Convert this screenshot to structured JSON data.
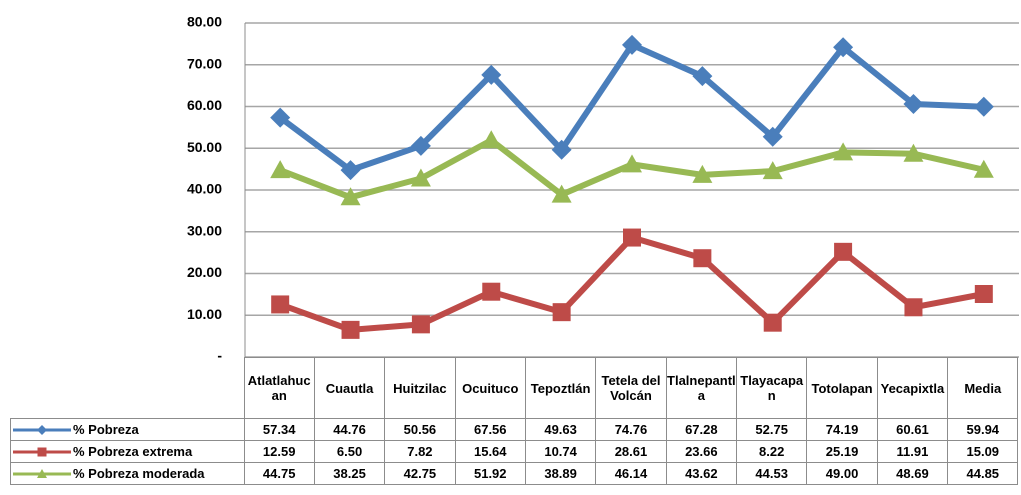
{
  "chart_data": {
    "type": "line",
    "categories": [
      "Atlatlahucan",
      "Cuautla",
      "Huitzilac",
      "Ocuituco",
      "Tepoztlán",
      "Tetela del Volcán",
      "Tlalnepantla",
      "Tlayacapan",
      "Totolapan",
      "Yecapixtla",
      "Media"
    ],
    "series": [
      {
        "name": "% Pobreza",
        "color": "#4a7ebb",
        "marker": "diamond",
        "values": [
          57.34,
          44.76,
          50.56,
          67.56,
          49.63,
          74.76,
          67.28,
          52.75,
          74.19,
          60.61,
          59.94
        ],
        "value_labels": [
          "57.34",
          "44.76",
          "50.56",
          "67.56",
          "49.63",
          "74.76",
          "67.28",
          "52.75",
          "74.19",
          "60.61",
          "59.94"
        ]
      },
      {
        "name": "% Pobreza extrema",
        "color": "#be4b48",
        "marker": "square",
        "values": [
          12.59,
          6.5,
          7.82,
          15.64,
          10.74,
          28.61,
          23.66,
          8.22,
          25.19,
          11.91,
          15.09
        ],
        "value_labels": [
          "12.59",
          "6.50",
          "7.82",
          "15.64",
          "10.74",
          "28.61",
          "23.66",
          "8.22",
          "25.19",
          "11.91",
          "15.09"
        ]
      },
      {
        "name": "% Pobreza moderada",
        "color": "#98b954",
        "marker": "triangle",
        "values": [
          44.75,
          38.25,
          42.75,
          51.92,
          38.89,
          46.14,
          43.62,
          44.53,
          49.0,
          48.69,
          44.85
        ],
        "value_labels": [
          "44.75",
          "38.25",
          "42.75",
          "51.92",
          "38.89",
          "46.14",
          "43.62",
          "44.53",
          "49.00",
          "48.69",
          "44.85"
        ]
      }
    ],
    "ylim": [
      0,
      80
    ],
    "yticks": [
      {
        "value": 0,
        "label": "-"
      },
      {
        "value": 10,
        "label": "10.00"
      },
      {
        "value": 20,
        "label": "20.00"
      },
      {
        "value": 30,
        "label": "30.00"
      },
      {
        "value": 40,
        "label": "40.00"
      },
      {
        "value": 50,
        "label": "50.00"
      },
      {
        "value": 60,
        "label": "60.00"
      },
      {
        "value": 70,
        "label": "70.00"
      },
      {
        "value": 80,
        "label": "80.00"
      }
    ],
    "grid": true
  }
}
